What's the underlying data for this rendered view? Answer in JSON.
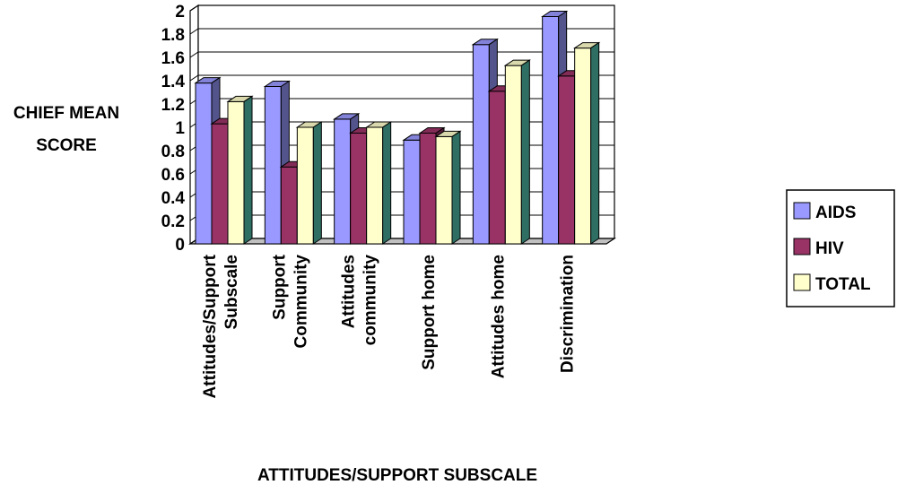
{
  "chart_data": {
    "type": "bar",
    "categories": [
      [
        "Attitudes/Support",
        "Subscale"
      ],
      [
        "Support",
        "Community"
      ],
      [
        "Attitudes",
        "community"
      ],
      [
        "Support home"
      ],
      [
        "Attitudes home"
      ],
      [
        "Discrimination"
      ]
    ],
    "series": [
      {
        "name": "AIDS",
        "color": "#9999ff",
        "values": [
          1.38,
          1.35,
          1.07,
          0.89,
          1.71,
          1.95
        ]
      },
      {
        "name": "HIV",
        "color": "#993366",
        "values": [
          1.03,
          0.66,
          0.95,
          0.95,
          1.31,
          1.44
        ]
      },
      {
        "name": "TOTAL",
        "color": "#ffffcc",
        "values": [
          1.22,
          1.0,
          1.0,
          0.92,
          1.53,
          1.68
        ]
      }
    ],
    "ylim": [
      0,
      2
    ],
    "yticks": [
      0,
      0.2,
      0.4,
      0.6,
      0.8,
      1,
      1.2,
      1.4,
      1.6,
      1.8,
      2
    ],
    "ytick_labels": [
      "0",
      "0.2",
      "0.4",
      "0.6",
      "0.8",
      "1",
      "1.2",
      "1.4",
      "1.6",
      "1.8",
      "2"
    ],
    "ylabel": [
      "CHIEF MEAN",
      "SCORE"
    ],
    "xlabel": "ATTITUDES/SUPPORT SUBSCALE",
    "grid": true,
    "legend": "right"
  }
}
